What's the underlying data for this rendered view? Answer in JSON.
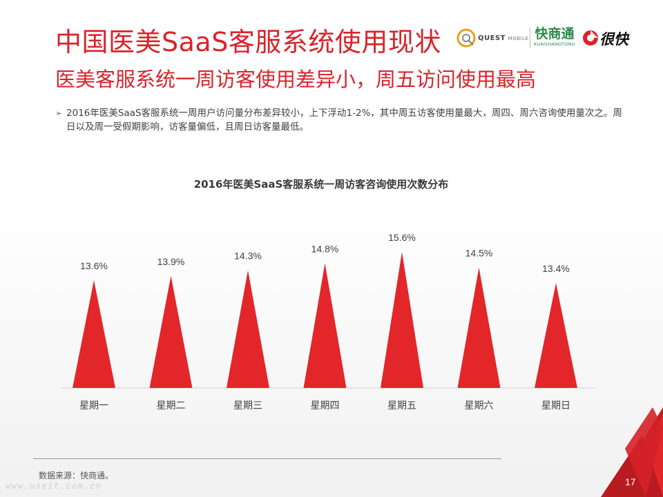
{
  "slide": {
    "title": "中国医美SaaS客服系统使用现状",
    "subtitle": "医美客服系统一周访客使用差异小，周五访问使用最高",
    "bullet_marker": "➢",
    "bullet": "2016年医美SaaS客服系统一周用户访问量分布差异较小，上下浮动1-2%，其中周五访客使用量最大，周四、周六咨询使用量次之。周日以及周一受假期影响，访客量偏低，且周日访客量最低。",
    "source": "数据来源：快商通。",
    "watermark": "www.useit.com.cn",
    "page_number": "17"
  },
  "logos": {
    "quest_bold": "QUEST",
    "quest_light": "MOBILE",
    "kuaishangtong_cn": "快商通",
    "kuaishangtong_py": "KUAISHANGTONG",
    "henkuai": "很快"
  },
  "colors": {
    "accent": "#d9232a",
    "bar": "#e3262a",
    "text": "#404040"
  },
  "chart_data": {
    "type": "bar",
    "title": "2016年医美SaaS客服系统一周访客咨询使用次数分布",
    "categories": [
      "星期一",
      "星期二",
      "星期三",
      "星期四",
      "星期五",
      "星期六",
      "星期日"
    ],
    "values": [
      13.6,
      13.9,
      14.3,
      14.8,
      15.6,
      14.5,
      13.4
    ],
    "value_labels": [
      "13.6%",
      "13.9%",
      "14.3%",
      "14.8%",
      "15.6%",
      "14.5%",
      "13.4%"
    ],
    "bar_shape": "triangle",
    "grid": false
  }
}
